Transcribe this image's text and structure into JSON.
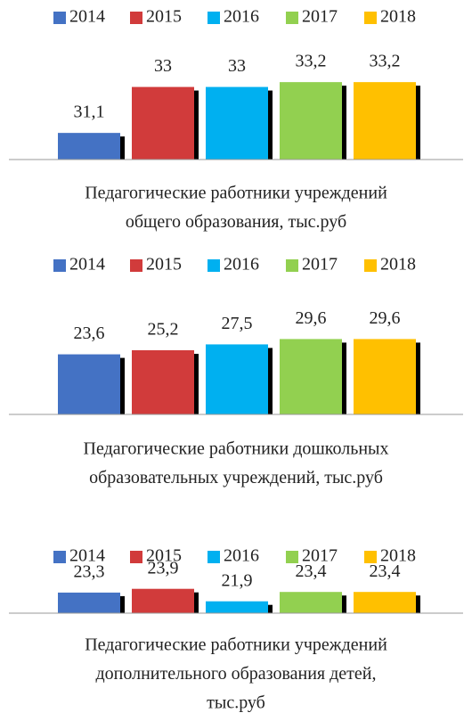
{
  "chart_data": [
    {
      "type": "bar",
      "title": [
        "Педагогические работники учреждений",
        "общего образования, тыс.руб"
      ],
      "ylim": [
        30,
        33.5
      ],
      "series": [
        {
          "name": "2014",
          "color": "#4472c4",
          "values": [
            31.1
          ],
          "value_labels": [
            "31,1"
          ]
        },
        {
          "name": "2015",
          "color": "#d13b3b",
          "values": [
            33
          ],
          "value_labels": [
            "33"
          ]
        },
        {
          "name": "2016",
          "color": "#00b0f0",
          "values": [
            33
          ],
          "value_labels": [
            "33"
          ]
        },
        {
          "name": "2017",
          "color": "#92d050",
          "values": [
            33.2
          ],
          "value_labels": [
            "33,2"
          ]
        },
        {
          "name": "2018",
          "color": "#ffc000",
          "values": [
            33.2
          ],
          "value_labels": [
            "33,2"
          ]
        }
      ]
    },
    {
      "type": "bar",
      "title": [
        "Педагогические работники дошкольных",
        "образовательных учреждений, тыс.руб"
      ],
      "ylim": [
        0,
        35
      ],
      "series": [
        {
          "name": "2014",
          "color": "#4472c4",
          "values": [
            23.6
          ],
          "value_labels": [
            "23,6"
          ]
        },
        {
          "name": "2015",
          "color": "#d13b3b",
          "values": [
            25.2
          ],
          "value_labels": [
            "25,2"
          ]
        },
        {
          "name": "2016",
          "color": "#00b0f0",
          "values": [
            27.5
          ],
          "value_labels": [
            "27,5"
          ]
        },
        {
          "name": "2017",
          "color": "#92d050",
          "values": [
            29.6
          ],
          "value_labels": [
            "29,6"
          ]
        },
        {
          "name": "2018",
          "color": "#ffc000",
          "values": [
            29.6
          ],
          "value_labels": [
            "29,6"
          ]
        }
      ]
    },
    {
      "type": "bar",
      "title": [
        "Педагогические работники учреждений",
        "дополнительного образования детей,",
        "тыс.руб"
      ],
      "ylim": [
        20,
        25
      ],
      "series": [
        {
          "name": "2014",
          "color": "#4472c4",
          "values": [
            23.3
          ],
          "value_labels": [
            "23,3"
          ]
        },
        {
          "name": "2015",
          "color": "#d13b3b",
          "values": [
            23.9
          ],
          "value_labels": [
            "23,9"
          ]
        },
        {
          "name": "2016",
          "color": "#00b0f0",
          "values": [
            21.9
          ],
          "value_labels": [
            "21,9"
          ]
        },
        {
          "name": "2017",
          "color": "#92d050",
          "values": [
            23.4
          ],
          "value_labels": [
            "23,4"
          ]
        },
        {
          "name": "2018",
          "color": "#ffc000",
          "values": [
            23.4
          ],
          "value_labels": [
            "23,4"
          ]
        }
      ]
    }
  ]
}
